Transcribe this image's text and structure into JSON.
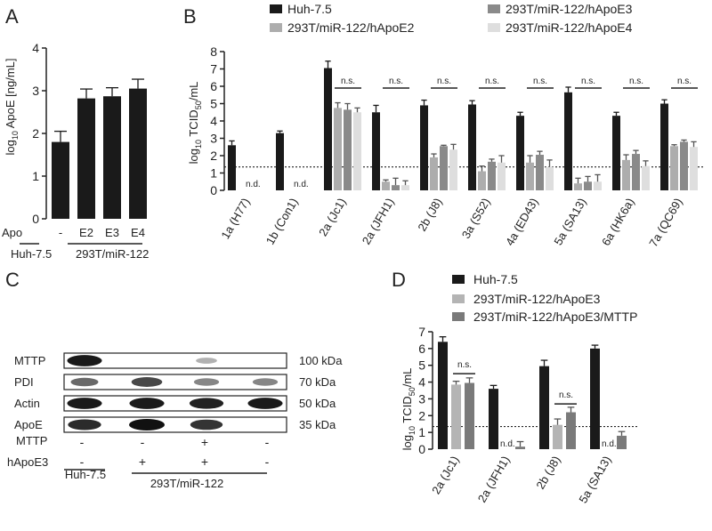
{
  "colors": {
    "huh": "#1a1a1a",
    "e2": "#adadad",
    "e3": "#8a8a8a",
    "e4": "#dedede",
    "e3_D": "#b4b4b4",
    "mttp_D": "#7a7a7a",
    "axis": "#222222"
  },
  "panel_labels": {
    "A": "A",
    "B": "B",
    "C": "C",
    "D": "D"
  },
  "chart_data": [
    {
      "panel": "A",
      "type": "bar",
      "ylabel": "log10 ApoE [ng/mL]",
      "ylabel_parts": {
        "pre": "log",
        "sub": "10",
        "post": " ApoE [ng/mL]"
      },
      "ylim": [
        0,
        4
      ],
      "yticks": [
        "0",
        "1",
        "2",
        "3",
        "4"
      ],
      "categories": [
        "-",
        "E2",
        "E3",
        "E4"
      ],
      "values": [
        1.8,
        2.82,
        2.87,
        3.05
      ],
      "errors": [
        0.25,
        0.22,
        0.2,
        0.22
      ],
      "row_labels": {
        "apo": "Apo",
        "huh": "Huh-7.5",
        "mir": "293T/miR-122"
      }
    },
    {
      "panel": "B",
      "type": "bar",
      "ylabel_parts": {
        "pre": "log",
        "sub1": "10",
        "mid": " TCID",
        "sub2": "50",
        "post": "/mL"
      },
      "ylim": [
        0,
        8
      ],
      "yticks": [
        "0",
        "1",
        "2",
        "3",
        "4",
        "5",
        "6",
        "7",
        "8"
      ],
      "dotted_line": 1.35,
      "categories": [
        "1a (H77)",
        "1b (Con1)",
        "2a (Jc1)",
        "2a (JFH1)",
        "2b (J8)",
        "3a (S52)",
        "4a (ED43)",
        "5a (SA13)",
        "6a (HK6a)",
        "7a (QC69)"
      ],
      "series": [
        {
          "name": "Huh-7.5",
          "values": [
            2.6,
            3.3,
            7.05,
            4.5,
            4.9,
            4.95,
            4.3,
            5.65,
            4.3,
            5.0
          ],
          "errors": [
            0.25,
            0.12,
            0.4,
            0.4,
            0.3,
            0.22,
            0.2,
            0.3,
            0.2,
            0.22
          ]
        },
        {
          "name": "293T/miR-122/hApoE2",
          "values": [
            null,
            null,
            4.75,
            0.5,
            1.9,
            1.1,
            1.6,
            0.4,
            1.75,
            2.55
          ],
          "errors": [
            0,
            0,
            0.3,
            0.1,
            0.2,
            0.3,
            0.4,
            0.3,
            0.3,
            0.08
          ]
        },
        {
          "name": "293T/miR-122/hApoE3",
          "values": [
            null,
            null,
            4.65,
            0.3,
            2.55,
            1.65,
            2.05,
            0.5,
            2.1,
            2.8
          ],
          "errors": [
            0,
            0,
            0.35,
            0.4,
            0.05,
            0.15,
            0.2,
            0.3,
            0.2,
            0.1
          ]
        },
        {
          "name": "293T/miR-122/hApoE4",
          "values": [
            null,
            null,
            4.5,
            0.3,
            2.35,
            1.6,
            1.35,
            0.5,
            1.4,
            2.5
          ],
          "errors": [
            0,
            0,
            0.25,
            0.25,
            0.3,
            0.4,
            0.4,
            0.4,
            0.3,
            0.3
          ]
        }
      ],
      "annotations": {
        "nd": "n.d.",
        "ns": "n.s."
      },
      "ns_groups": [
        2,
        3,
        4,
        5,
        6,
        7,
        8,
        9
      ],
      "nd_groups": [
        0,
        1
      ]
    },
    {
      "panel": "D",
      "type": "bar",
      "ylabel_parts": {
        "pre": "log",
        "sub1": "10",
        "mid": " TCID",
        "sub2": "50",
        "post": "/mL"
      },
      "ylim": [
        0,
        7
      ],
      "yticks": [
        "0",
        "1",
        "2",
        "3",
        "4",
        "5",
        "6",
        "7"
      ],
      "dotted_line": 1.35,
      "categories": [
        "2a (Jc1)",
        "2a (JFH1)",
        "2b (J8)",
        "5a (SA13)"
      ],
      "series": [
        {
          "name": "Huh-7.5",
          "values": [
            6.4,
            3.6,
            4.95,
            6.0
          ],
          "errors": [
            0.3,
            0.2,
            0.35,
            0.2
          ]
        },
        {
          "name": "293T/miR-122/hApoE3",
          "values": [
            3.85,
            null,
            1.45,
            null
          ],
          "errors": [
            0.2,
            0,
            0.35,
            0
          ]
        },
        {
          "name": "293T/miR-122/hApoE3/MTTP",
          "values": [
            3.95,
            0.15,
            2.2,
            0.8
          ],
          "errors": [
            0.3,
            0.3,
            0.3,
            0.25
          ]
        }
      ],
      "annotations": {
        "nd": "n.d.",
        "ns": "n.s."
      },
      "ns_groups": [
        0,
        2
      ],
      "nd_groups": [
        1,
        3
      ]
    }
  ],
  "blot": {
    "rows": [
      "MTTP",
      "PDI",
      "Actin",
      "ApoE"
    ],
    "sizes": [
      "100 kDa",
      "70 kDa",
      "50 kDa",
      "35 kDa"
    ],
    "mttp_label": "MTTP",
    "apoe3_label": "hApoE3",
    "mttp_signs": [
      "-",
      "-",
      "+",
      "-"
    ],
    "apoe3_signs": [
      "-",
      "+",
      "+",
      "-"
    ],
    "huh_label": "Huh-7.5",
    "mir_label": "293T/miR-122",
    "band_intensity": [
      [
        0.95,
        0.0,
        0.1,
        0.0
      ],
      [
        0.5,
        0.7,
        0.35,
        0.35
      ],
      [
        0.95,
        0.95,
        0.9,
        0.95
      ],
      [
        0.85,
        1.0,
        0.8,
        0.0
      ]
    ]
  }
}
